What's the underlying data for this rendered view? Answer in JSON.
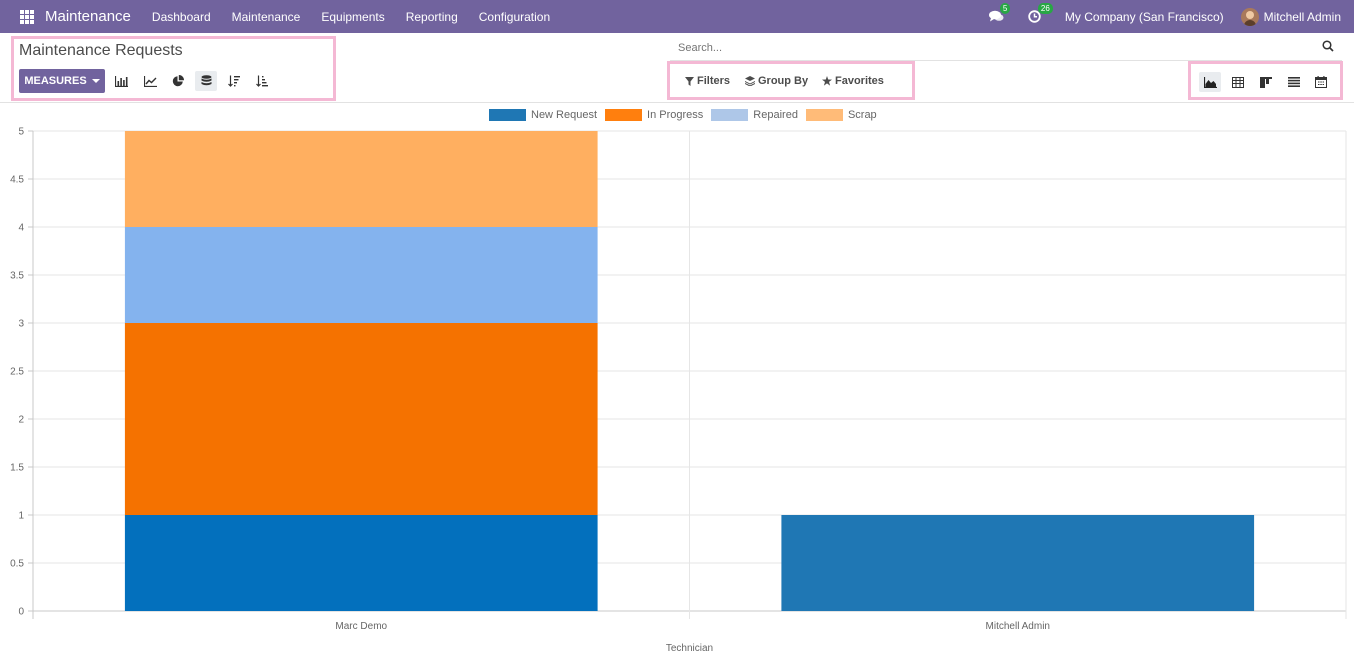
{
  "navbar": {
    "brand": "Maintenance",
    "menu": [
      "Dashboard",
      "Maintenance",
      "Equipments",
      "Reporting",
      "Configuration"
    ],
    "messages_count": "5",
    "activities_count": "26",
    "company": "My Company (San Francisco)",
    "user": "Mitchell Admin"
  },
  "control": {
    "title": "Maintenance Requests",
    "measures_label": "MEASURES",
    "search_placeholder": "Search...",
    "filters_label": "Filters",
    "group_by_label": "Group By",
    "favorites_label": "Favorites"
  },
  "icons": {
    "apps": "apps-grid-icon",
    "messages": "comments-icon",
    "activities": "clock-icon",
    "search": "search-icon",
    "bar_chart": "bar-chart-icon",
    "line_chart": "line-chart-icon",
    "pie_chart": "pie-chart-icon",
    "stacked": "stacked-icon",
    "sort_desc": "sort-descending-icon",
    "sort_asc": "sort-ascending-icon",
    "graph_view": "area-chart-icon",
    "pivot_view": "pivot-table-icon",
    "kanban_view": "kanban-icon",
    "list_view": "list-icon",
    "calendar_view": "calendar-icon"
  },
  "colors": {
    "navbar": "#71639e",
    "new_request": "#1f77b4",
    "in_progress": "#ff7f0e",
    "repaired": "#aec7e8",
    "scrap": "#ffbb78",
    "highlight": "#f4b8d4"
  },
  "chart_data": {
    "type": "bar",
    "stacked": true,
    "categories": [
      "Marc Demo",
      "Mitchell Admin"
    ],
    "series": [
      {
        "name": "New Request",
        "values": [
          1,
          1
        ],
        "colors": [
          "#0370bd",
          "#1f77b4"
        ]
      },
      {
        "name": "In Progress",
        "values": [
          2,
          0
        ],
        "colors": [
          "#f57200",
          "#ff7f0e"
        ]
      },
      {
        "name": "Repaired",
        "values": [
          1,
          0
        ],
        "colors": [
          "#84b3ee",
          "#aec7e8"
        ]
      },
      {
        "name": "Scrap",
        "values": [
          1,
          0
        ],
        "colors": [
          "#ffaf60",
          "#ffbb78"
        ]
      }
    ],
    "legend_colors": [
      "#1f77b4",
      "#ff7f0e",
      "#aec7e8",
      "#ffbb78"
    ],
    "xlabel": "Technician",
    "ylabel": "",
    "ylim": [
      0,
      5
    ],
    "yticks": [
      "0",
      "0.5",
      "1",
      "1.5",
      "2",
      "2.5",
      "3",
      "3.5",
      "4",
      "4.5",
      "5"
    ],
    "grid": true,
    "legend_position": "top"
  }
}
